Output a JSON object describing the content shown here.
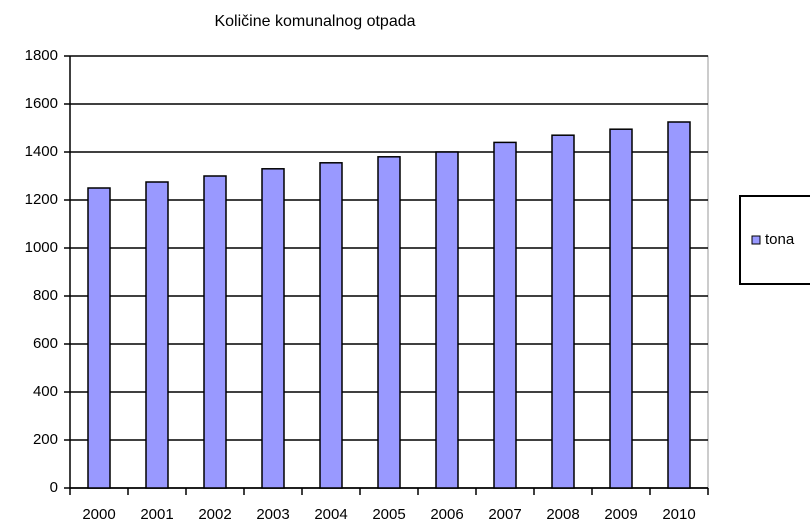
{
  "chart_data": {
    "type": "bar",
    "title": "Količine komunalnog otpada",
    "categories": [
      "2000",
      "2001",
      "2002",
      "2003",
      "2004",
      "2005",
      "2006",
      "2007",
      "2008",
      "2009",
      "2010"
    ],
    "series": [
      {
        "name": "tona",
        "color": "#9999ff",
        "values": [
          1250,
          1275,
          1300,
          1330,
          1355,
          1380,
          1400,
          1440,
          1470,
          1495,
          1525
        ]
      }
    ],
    "ylim": [
      0,
      1800
    ],
    "yticks": [
      0,
      200,
      400,
      600,
      800,
      1000,
      1200,
      1400,
      1600,
      1800
    ],
    "grid": true,
    "legend": "right"
  }
}
